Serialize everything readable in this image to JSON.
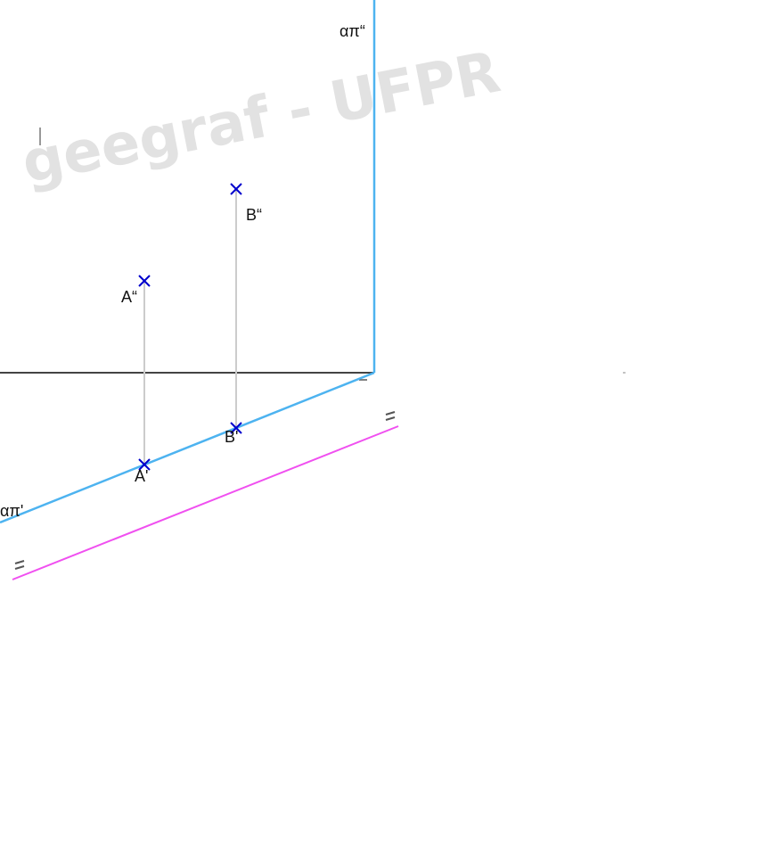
{
  "watermark": {
    "text": "geegraf - UFPR"
  },
  "labels": {
    "trace_v": "απ“",
    "trace_h": "απ'",
    "point_a_v": "A“",
    "point_a_h": "A'",
    "point_b_v": "B“",
    "point_b_h": "B'",
    "tick_ground": "-",
    "tick_double_1": "=",
    "tick_double_2": "="
  },
  "colors": {
    "ground_line": "#444444",
    "trace_lines": "#4db3f0",
    "parallel_line": "#f050f0",
    "recall_lines": "#cccccc",
    "points": "#0000cc",
    "watermark": "#dddddd"
  },
  "icons": {
    "point_marker": "x-cross-icon"
  }
}
